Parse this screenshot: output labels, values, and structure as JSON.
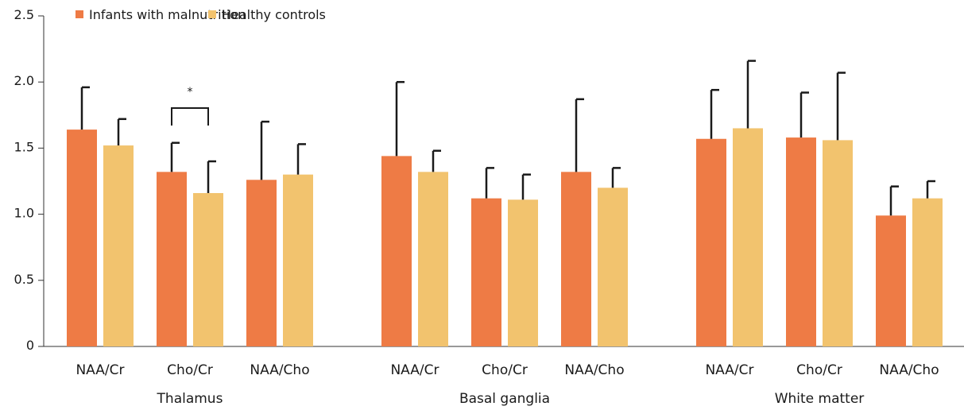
{
  "chart_data": {
    "type": "bar",
    "title": "",
    "xlabel": "",
    "ylabel": "",
    "ylim": [
      0,
      2.5
    ],
    "yticks": [
      {
        "value": 0,
        "label": "0"
      },
      {
        "value": 0.5,
        "label": "0.5"
      },
      {
        "value": 1.0,
        "label": "1.0"
      },
      {
        "value": 1.5,
        "label": "1.5"
      },
      {
        "value": 2.0,
        "label": "2.0"
      },
      {
        "value": 2.5,
        "label": "2.5"
      }
    ],
    "grid": false,
    "legend_position": "top-left",
    "groups": [
      {
        "label": "Thalamus",
        "categories": [
          "NAA/Cr",
          "Cho/Cr",
          "NAA/Cho"
        ]
      },
      {
        "label": "Basal ganglia",
        "categories": [
          "NAA/Cr",
          "Cho/Cr",
          "NAA/Cho"
        ]
      },
      {
        "label": "White matter",
        "categories": [
          "NAA/Cr",
          "Cho/Cr",
          "NAA/Cho"
        ]
      }
    ],
    "series": [
      {
        "name": "Infants with malnutrition",
        "color": "#EE7B45",
        "values": [
          1.64,
          1.32,
          1.26,
          1.44,
          1.12,
          1.32,
          1.57,
          1.58,
          0.99
        ],
        "error_upper": [
          1.96,
          1.54,
          1.7,
          2.0,
          1.35,
          1.87,
          1.94,
          1.92,
          1.21
        ]
      },
      {
        "name": "Healthy controls",
        "color": "#F2C36E",
        "values": [
          1.52,
          1.16,
          1.3,
          1.32,
          1.11,
          1.2,
          1.65,
          1.56,
          1.12
        ],
        "error_upper": [
          1.72,
          1.4,
          1.53,
          1.48,
          1.3,
          1.35,
          2.16,
          2.07,
          1.25
        ]
      }
    ],
    "annotations": [
      {
        "text": "*",
        "type": "significance-bracket",
        "category_index": 1
      }
    ]
  }
}
